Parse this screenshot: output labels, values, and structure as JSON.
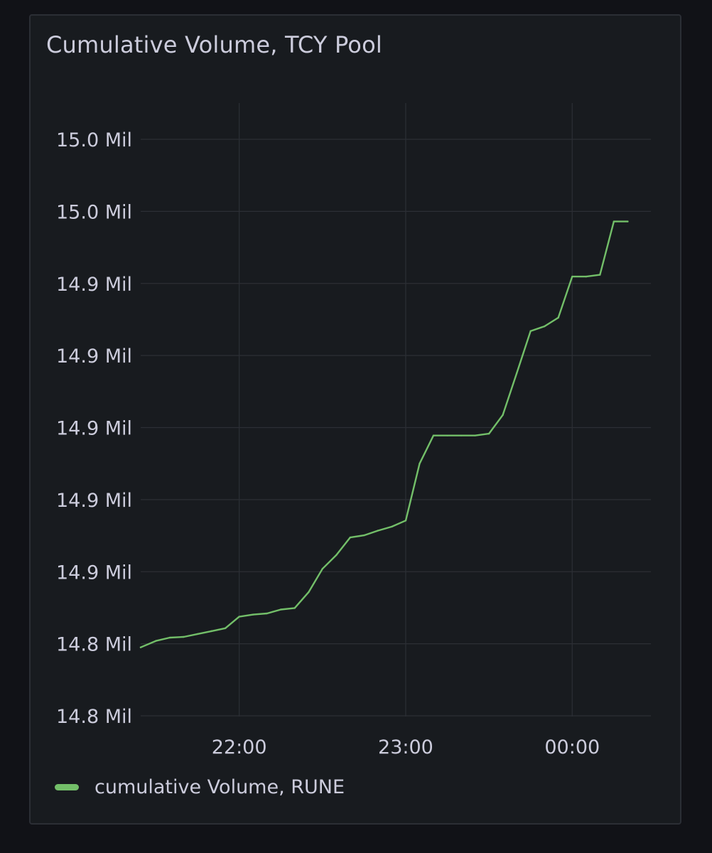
{
  "panel": {
    "title": "Cumulative Volume, TCY Pool"
  },
  "chart_data": {
    "type": "line",
    "title": "Cumulative Volume, TCY Pool",
    "xlabel": "",
    "ylabel": "",
    "x_tick_labels": [
      "22:00",
      "23:00",
      "00:00"
    ],
    "x_ticks_minutes_after_21h": [
      60,
      120,
      180
    ],
    "xlim_minutes_after_21h": [
      24.5,
      204
    ],
    "y_tick_labels": [
      "14.8 Mil",
      "14.8 Mil",
      "14.9 Mil",
      "14.9 Mil",
      "14.9 Mil",
      "14.9 Mil",
      "14.9 Mil",
      "15.0 Mil",
      "15.0 Mil"
    ],
    "y_tick_values": [
      14.8,
      14.82,
      14.84,
      14.86,
      14.88,
      14.9,
      14.92,
      14.94,
      14.96
    ],
    "ylim": [
      14.8,
      14.96
    ],
    "grid": true,
    "legend_position": "bottom-left",
    "series": [
      {
        "name": "cumulative Volume, RUNE",
        "color": "#73bf69",
        "x_minutes_after_21h": [
          24.5,
          30,
          35,
          40,
          45,
          50,
          55,
          60,
          65,
          70,
          75,
          80,
          85,
          90,
          95,
          100,
          105,
          110,
          115,
          120,
          125,
          130,
          135,
          140,
          145,
          150,
          155,
          160,
          165,
          170,
          175,
          180,
          185,
          190,
          195,
          200
        ],
        "values": [
          14.819,
          14.8208,
          14.8217,
          14.8219,
          14.8227,
          14.8235,
          14.8243,
          14.8275,
          14.8281,
          14.8284,
          14.8295,
          14.8299,
          14.8343,
          14.8408,
          14.8446,
          14.8495,
          14.8501,
          14.8514,
          14.8525,
          14.8542,
          14.87,
          14.8778,
          14.8778,
          14.8778,
          14.8778,
          14.8783,
          14.8835,
          14.8951,
          14.9068,
          14.9081,
          14.9105,
          14.9219,
          14.9219,
          14.9224,
          14.9372,
          14.9372
        ]
      }
    ]
  }
}
